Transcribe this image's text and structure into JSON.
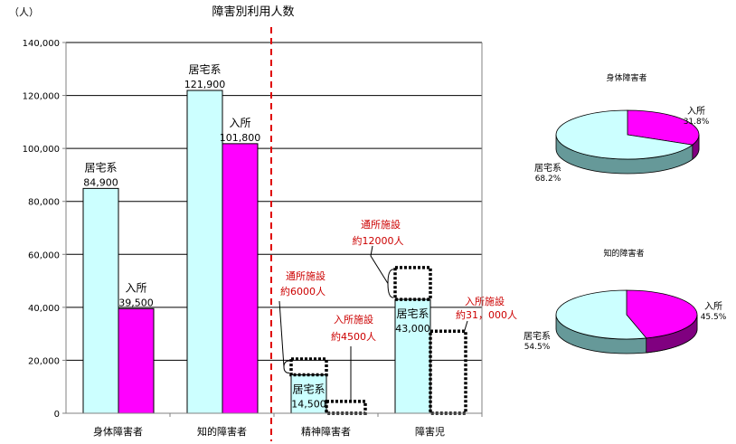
{
  "chart_data": [
    {
      "type": "bar",
      "title": "障害別利用人数",
      "ylabel": "（人）",
      "ylim": [
        0,
        140000
      ],
      "yticks": [
        "0",
        "20,000",
        "40,000",
        "60,000",
        "80,000",
        "100,000",
        "120,000",
        "140,000"
      ],
      "categories": [
        "身体障害者",
        "知的障害者",
        "精神障害者",
        "障害児"
      ],
      "grid": true,
      "colors": {
        "residential": "#ccffff",
        "institutional": "#ff00ff"
      },
      "series": [
        {
          "name": "居宅系",
          "values": [
            84900,
            121900,
            14500,
            43000
          ],
          "labels": [
            "84,900",
            "121,900",
            "14,500",
            "43,000"
          ]
        },
        {
          "name": "入所",
          "values": [
            39500,
            101800,
            null,
            null
          ],
          "labels": [
            "39,500",
            "101,800",
            "",
            ""
          ]
        }
      ],
      "annotations": {
        "mental_outpatient": {
          "text1": "通所施設",
          "text2": "約6000人",
          "value": 6000
        },
        "mental_institution": {
          "text1": "入所施設",
          "text2": "約4500人",
          "value": 4500
        },
        "child_outpatient": {
          "text1": "通所施設",
          "text2": "約12000人",
          "value": 12000
        },
        "child_institution": {
          "text1": "入所施設",
          "text2": "約31，000人",
          "value": 31000
        }
      }
    },
    {
      "type": "pie",
      "title": "身体障害者",
      "slices": [
        {
          "name": "入所",
          "value": 31.8,
          "label": "31.8%",
          "color": "#ff00ff"
        },
        {
          "name": "居宅系",
          "value": 68.2,
          "label": "68.2%",
          "color": "#ccffff"
        }
      ]
    },
    {
      "type": "pie",
      "title": "知的障害者",
      "slices": [
        {
          "name": "入所",
          "value": 45.5,
          "label": "45.5%",
          "color": "#ff00ff"
        },
        {
          "name": "居宅系",
          "value": 54.5,
          "label": "54.5%",
          "color": "#ccffff"
        }
      ]
    }
  ]
}
